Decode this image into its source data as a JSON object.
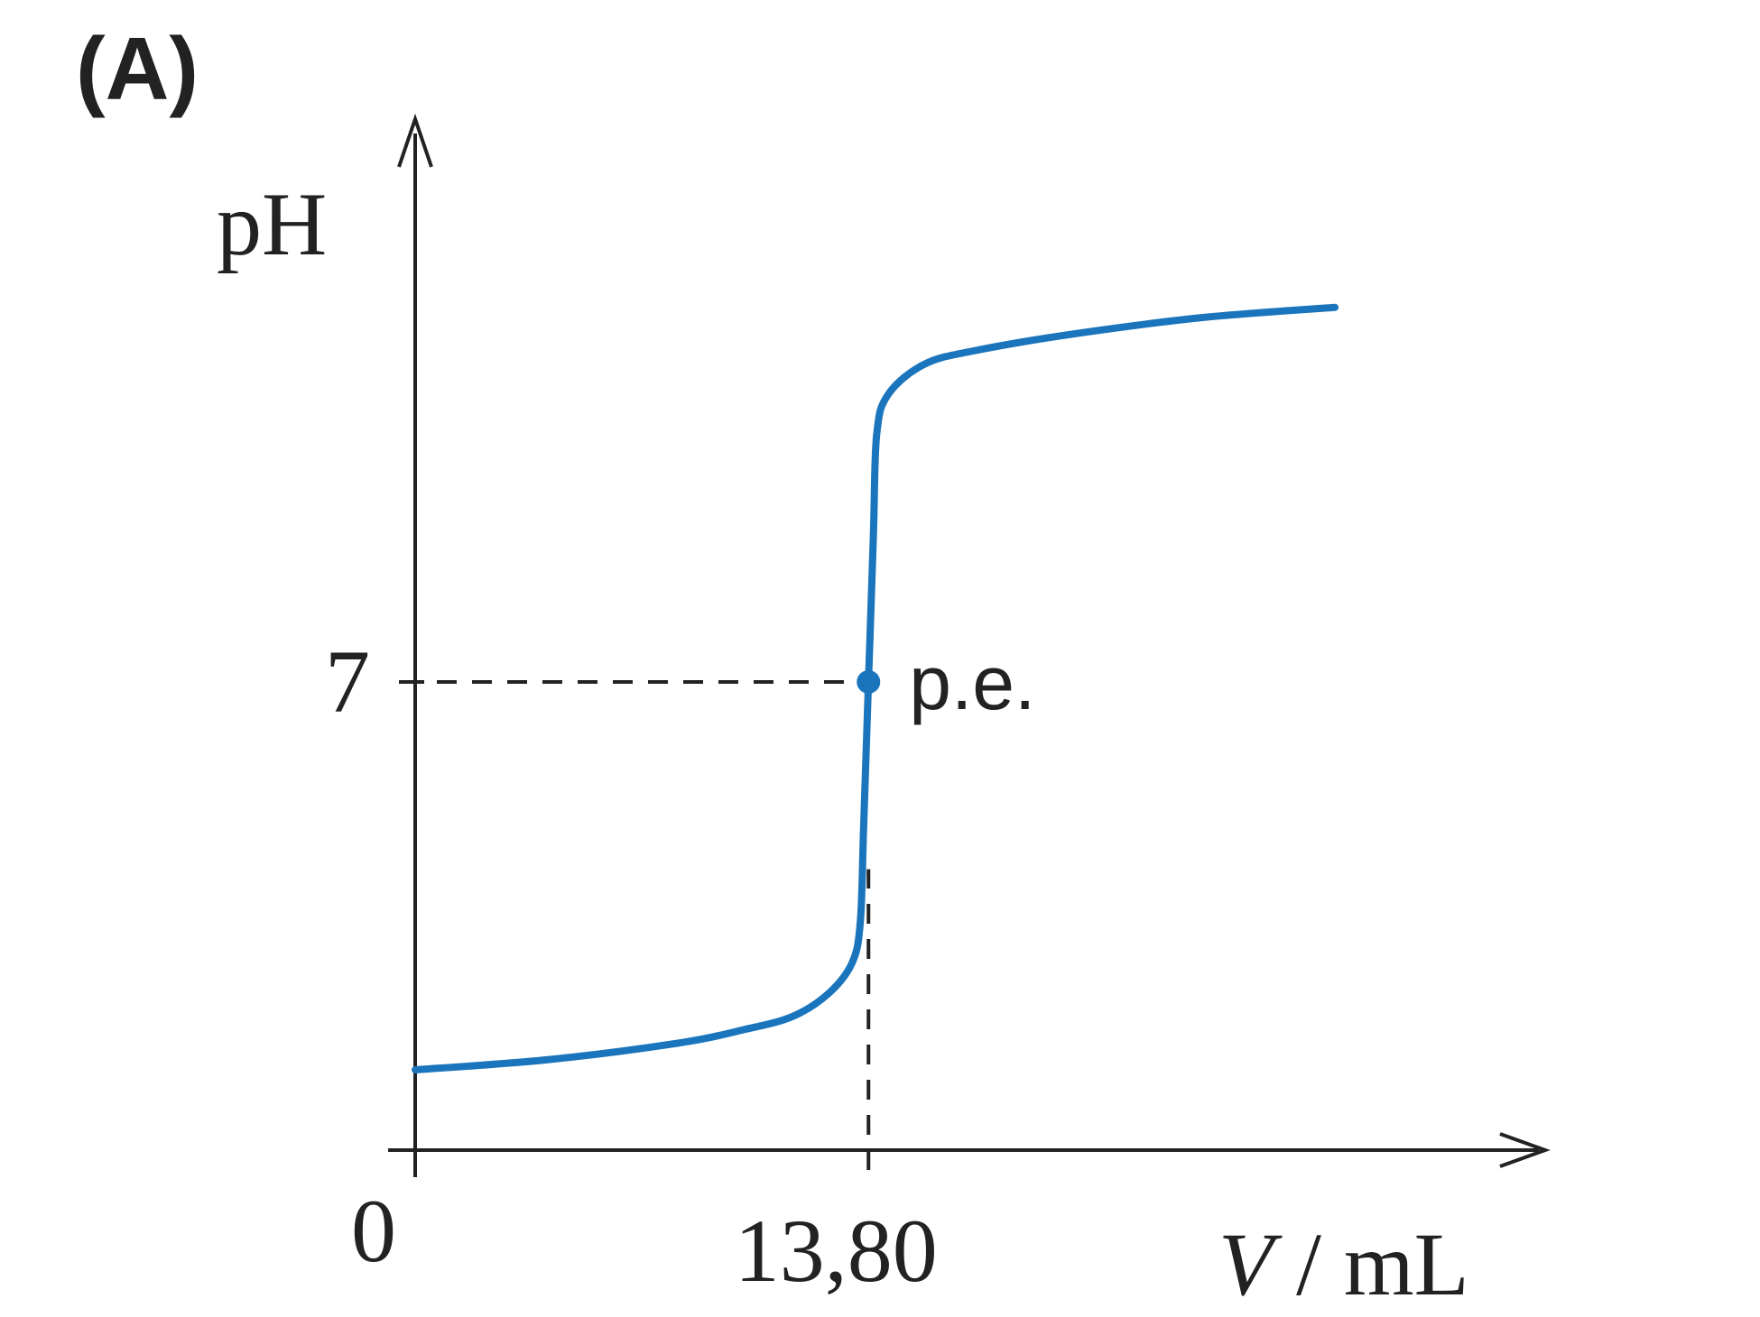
{
  "panel_label": "(A)",
  "chart_data": {
    "type": "line",
    "title": "",
    "ylabel": "pH",
    "xlabel_var": "V",
    "xlabel_unit": " / mL",
    "x_tick_labels": {
      "origin": "0",
      "equivalence": "13,80"
    },
    "y_tick_label": "7",
    "equivalence_point": {
      "x": 13.8,
      "y": 7,
      "label": "p.e."
    },
    "xlim": [
      0,
      38
    ],
    "ylim": [
      0,
      15.2
    ],
    "series": [
      {
        "points": [
          [
            0.0,
            1.2
          ],
          [
            4.0,
            1.35
          ],
          [
            8.0,
            1.6
          ],
          [
            10.0,
            1.8
          ],
          [
            11.5,
            2.0
          ],
          [
            12.6,
            2.35
          ],
          [
            13.3,
            2.8
          ],
          [
            13.55,
            3.4
          ],
          [
            13.65,
            4.8
          ],
          [
            13.8,
            7.0
          ],
          [
            13.95,
            9.2
          ],
          [
            14.05,
            10.7
          ],
          [
            14.4,
            11.3
          ],
          [
            15.5,
            11.75
          ],
          [
            17.0,
            11.95
          ],
          [
            20.0,
            12.2
          ],
          [
            24.0,
            12.45
          ],
          [
            28.0,
            12.6
          ]
        ],
        "color": "#1b75bc"
      }
    ],
    "grid": false,
    "legend": "none"
  }
}
